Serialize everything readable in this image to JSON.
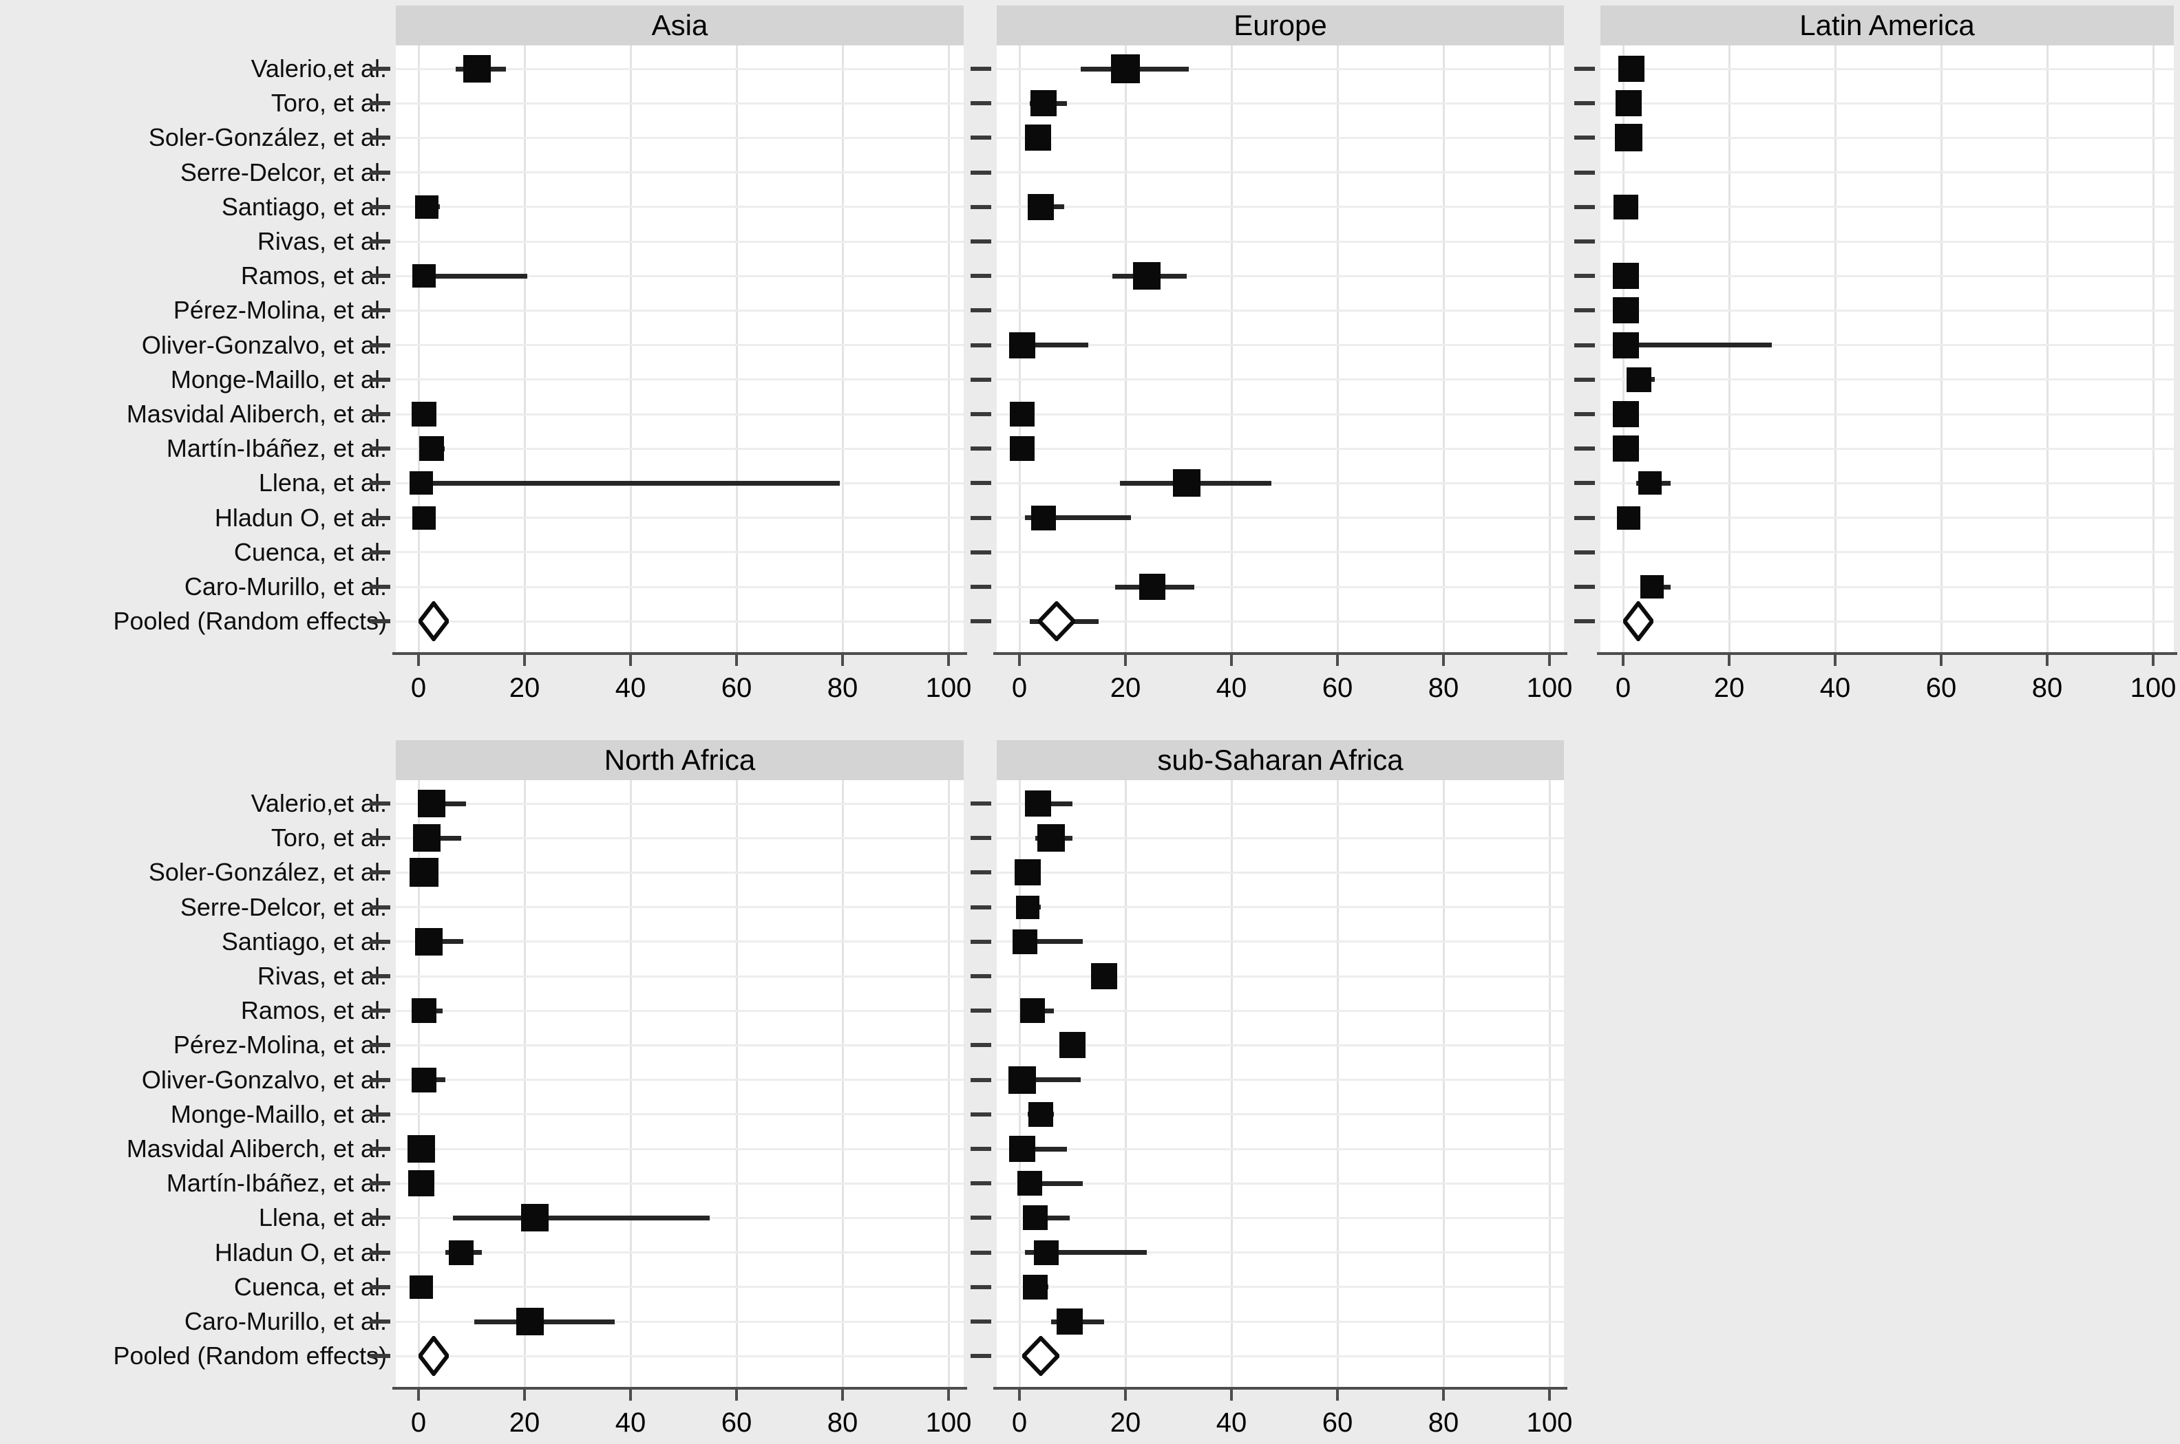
{
  "figure": {
    "kind": "forest-plot-meta-analysis",
    "background": "#ebebeb",
    "panel_title_bg": "#d4d4d4",
    "marker_color": "#0a0a0a",
    "ci_color": "#262626",
    "diamond_fill": "#ffffff",
    "diamond_stroke": "#0d0d0d"
  },
  "chart_data": {
    "type": "scatter",
    "subtype": "forest",
    "note": "Five-panel forest plot; squares = study estimate with CI whiskers (x units = percent 0-100), open diamond = pooled random-effects estimate",
    "x_ticks": [
      0,
      20,
      40,
      60,
      80,
      100
    ],
    "xlim": [
      -4.3,
      104
    ],
    "grid": "on",
    "studies": [
      "Valerio,et al.",
      "Toro, et al.",
      "Soler-González, et al.",
      "Serre-Delcor, et al.",
      "Santiago, et al.",
      "Rivas, et al.",
      "Ramos, et al.",
      "Pérez-Molina, et al.",
      "Oliver-Gonzalvo, et al.",
      "Monge-Maillo, et al.",
      "Masvidal Aliberch, et al.",
      "Martín-Ibáñez, et al.",
      "Llena, et al.",
      "Hladun O, et al.",
      "Cuenca, et al.",
      "Caro-Murillo, et al."
    ],
    "pooled_label": "Pooled (Random effects)",
    "panels": [
      {
        "title": "Asia",
        "grid_row": 0,
        "grid_col": 0,
        "points": [
          [
            11,
            7,
            16.5,
            40
          ],
          null,
          null,
          null,
          [
            1.5,
            0,
            4,
            34
          ],
          null,
          [
            1,
            0,
            20.5,
            34
          ],
          null,
          null,
          null,
          [
            1,
            0,
            2.5,
            36
          ],
          [
            2.5,
            0.5,
            5,
            36
          ],
          [
            0.5,
            0,
            79.5,
            34
          ],
          [
            1,
            0,
            3,
            34
          ],
          null,
          null
        ],
        "pooled": {
          "est": 1,
          "lo": 0,
          "hi": 3
        }
      },
      {
        "title": "Europe",
        "grid_row": 0,
        "grid_col": 1,
        "points": [
          [
            20,
            11.5,
            32,
            42
          ],
          [
            4.5,
            2,
            9,
            38
          ],
          [
            3.5,
            2,
            5.5,
            38
          ],
          null,
          [
            4,
            2,
            8.5,
            38
          ],
          null,
          [
            24,
            17.5,
            31.5,
            40
          ],
          null,
          [
            0.5,
            0,
            13,
            38
          ],
          null,
          [
            0.5,
            0,
            2,
            36
          ],
          [
            0.5,
            0,
            2,
            36
          ],
          [
            31.5,
            19,
            47.5,
            40
          ],
          [
            4.5,
            1,
            21,
            36
          ],
          null,
          [
            25,
            18,
            33,
            38
          ]
        ],
        "pooled": {
          "est": 7,
          "lo": 2,
          "hi": 15,
          "dlo": 3.5,
          "dhi": 10.5
        }
      },
      {
        "title": "Latin America",
        "grid_row": 0,
        "grid_col": 2,
        "points": [
          [
            1.5,
            0,
            4,
            38
          ],
          [
            1,
            0,
            3,
            38
          ],
          [
            1,
            0,
            3,
            40
          ],
          null,
          [
            0.5,
            0,
            2,
            36
          ],
          null,
          [
            0.5,
            0,
            2,
            38
          ],
          [
            0.5,
            0,
            2,
            38
          ],
          [
            0.5,
            0,
            28,
            38
          ],
          [
            3,
            1,
            6,
            36
          ],
          [
            0.5,
            0,
            2,
            38
          ],
          [
            0.5,
            0,
            2,
            38
          ],
          [
            5,
            2.5,
            9,
            34
          ],
          [
            1,
            0,
            3,
            34
          ],
          null,
          [
            5.5,
            3.5,
            9,
            34
          ]
        ],
        "pooled": {
          "est": 1.5,
          "lo": 0,
          "hi": 3.5
        }
      },
      {
        "title": "North Africa",
        "grid_row": 1,
        "grid_col": 0,
        "points": [
          [
            2.5,
            0.5,
            9,
            40
          ],
          [
            1.5,
            0,
            8,
            40
          ],
          [
            1,
            0,
            3.5,
            42
          ],
          null,
          [
            2,
            0,
            8.5,
            40
          ],
          null,
          [
            1,
            0,
            4.5,
            36
          ],
          null,
          [
            1,
            0,
            5,
            36
          ],
          null,
          [
            0.5,
            0,
            2.5,
            40
          ],
          [
            0.5,
            0,
            2.5,
            38
          ],
          [
            22,
            6.5,
            55,
            40
          ],
          [
            8,
            5,
            12,
            36
          ],
          [
            0.5,
            0,
            2.5,
            34
          ],
          [
            21,
            10.5,
            37,
            40
          ]
        ],
        "pooled": {
          "est": 2,
          "lo": 0,
          "hi": 4.5
        }
      },
      {
        "title": "sub-Saharan Africa",
        "grid_row": 1,
        "grid_col": 1,
        "points": [
          [
            3.5,
            1,
            10,
            38
          ],
          [
            6,
            3,
            10,
            40
          ],
          [
            1.5,
            0,
            3.5,
            38
          ],
          [
            1.5,
            0,
            4,
            34
          ],
          [
            1,
            0,
            12,
            36
          ],
          [
            16,
            14,
            18,
            38
          ],
          [
            2.5,
            0.5,
            6.5,
            36
          ],
          [
            10,
            7.5,
            12.5,
            38
          ],
          [
            0.5,
            0,
            11.5,
            40
          ],
          [
            4,
            1.5,
            6.5,
            36
          ],
          [
            0.5,
            0,
            9,
            38
          ],
          [
            2,
            0,
            12,
            36
          ],
          [
            3,
            1,
            9.5,
            36
          ],
          [
            5,
            1,
            24,
            36
          ],
          [
            3,
            1,
            5.5,
            36
          ],
          [
            9.5,
            6,
            16,
            38
          ]
        ],
        "pooled": {
          "est": 3.5,
          "lo": 0.5,
          "hi": 7.5
        }
      }
    ]
  }
}
